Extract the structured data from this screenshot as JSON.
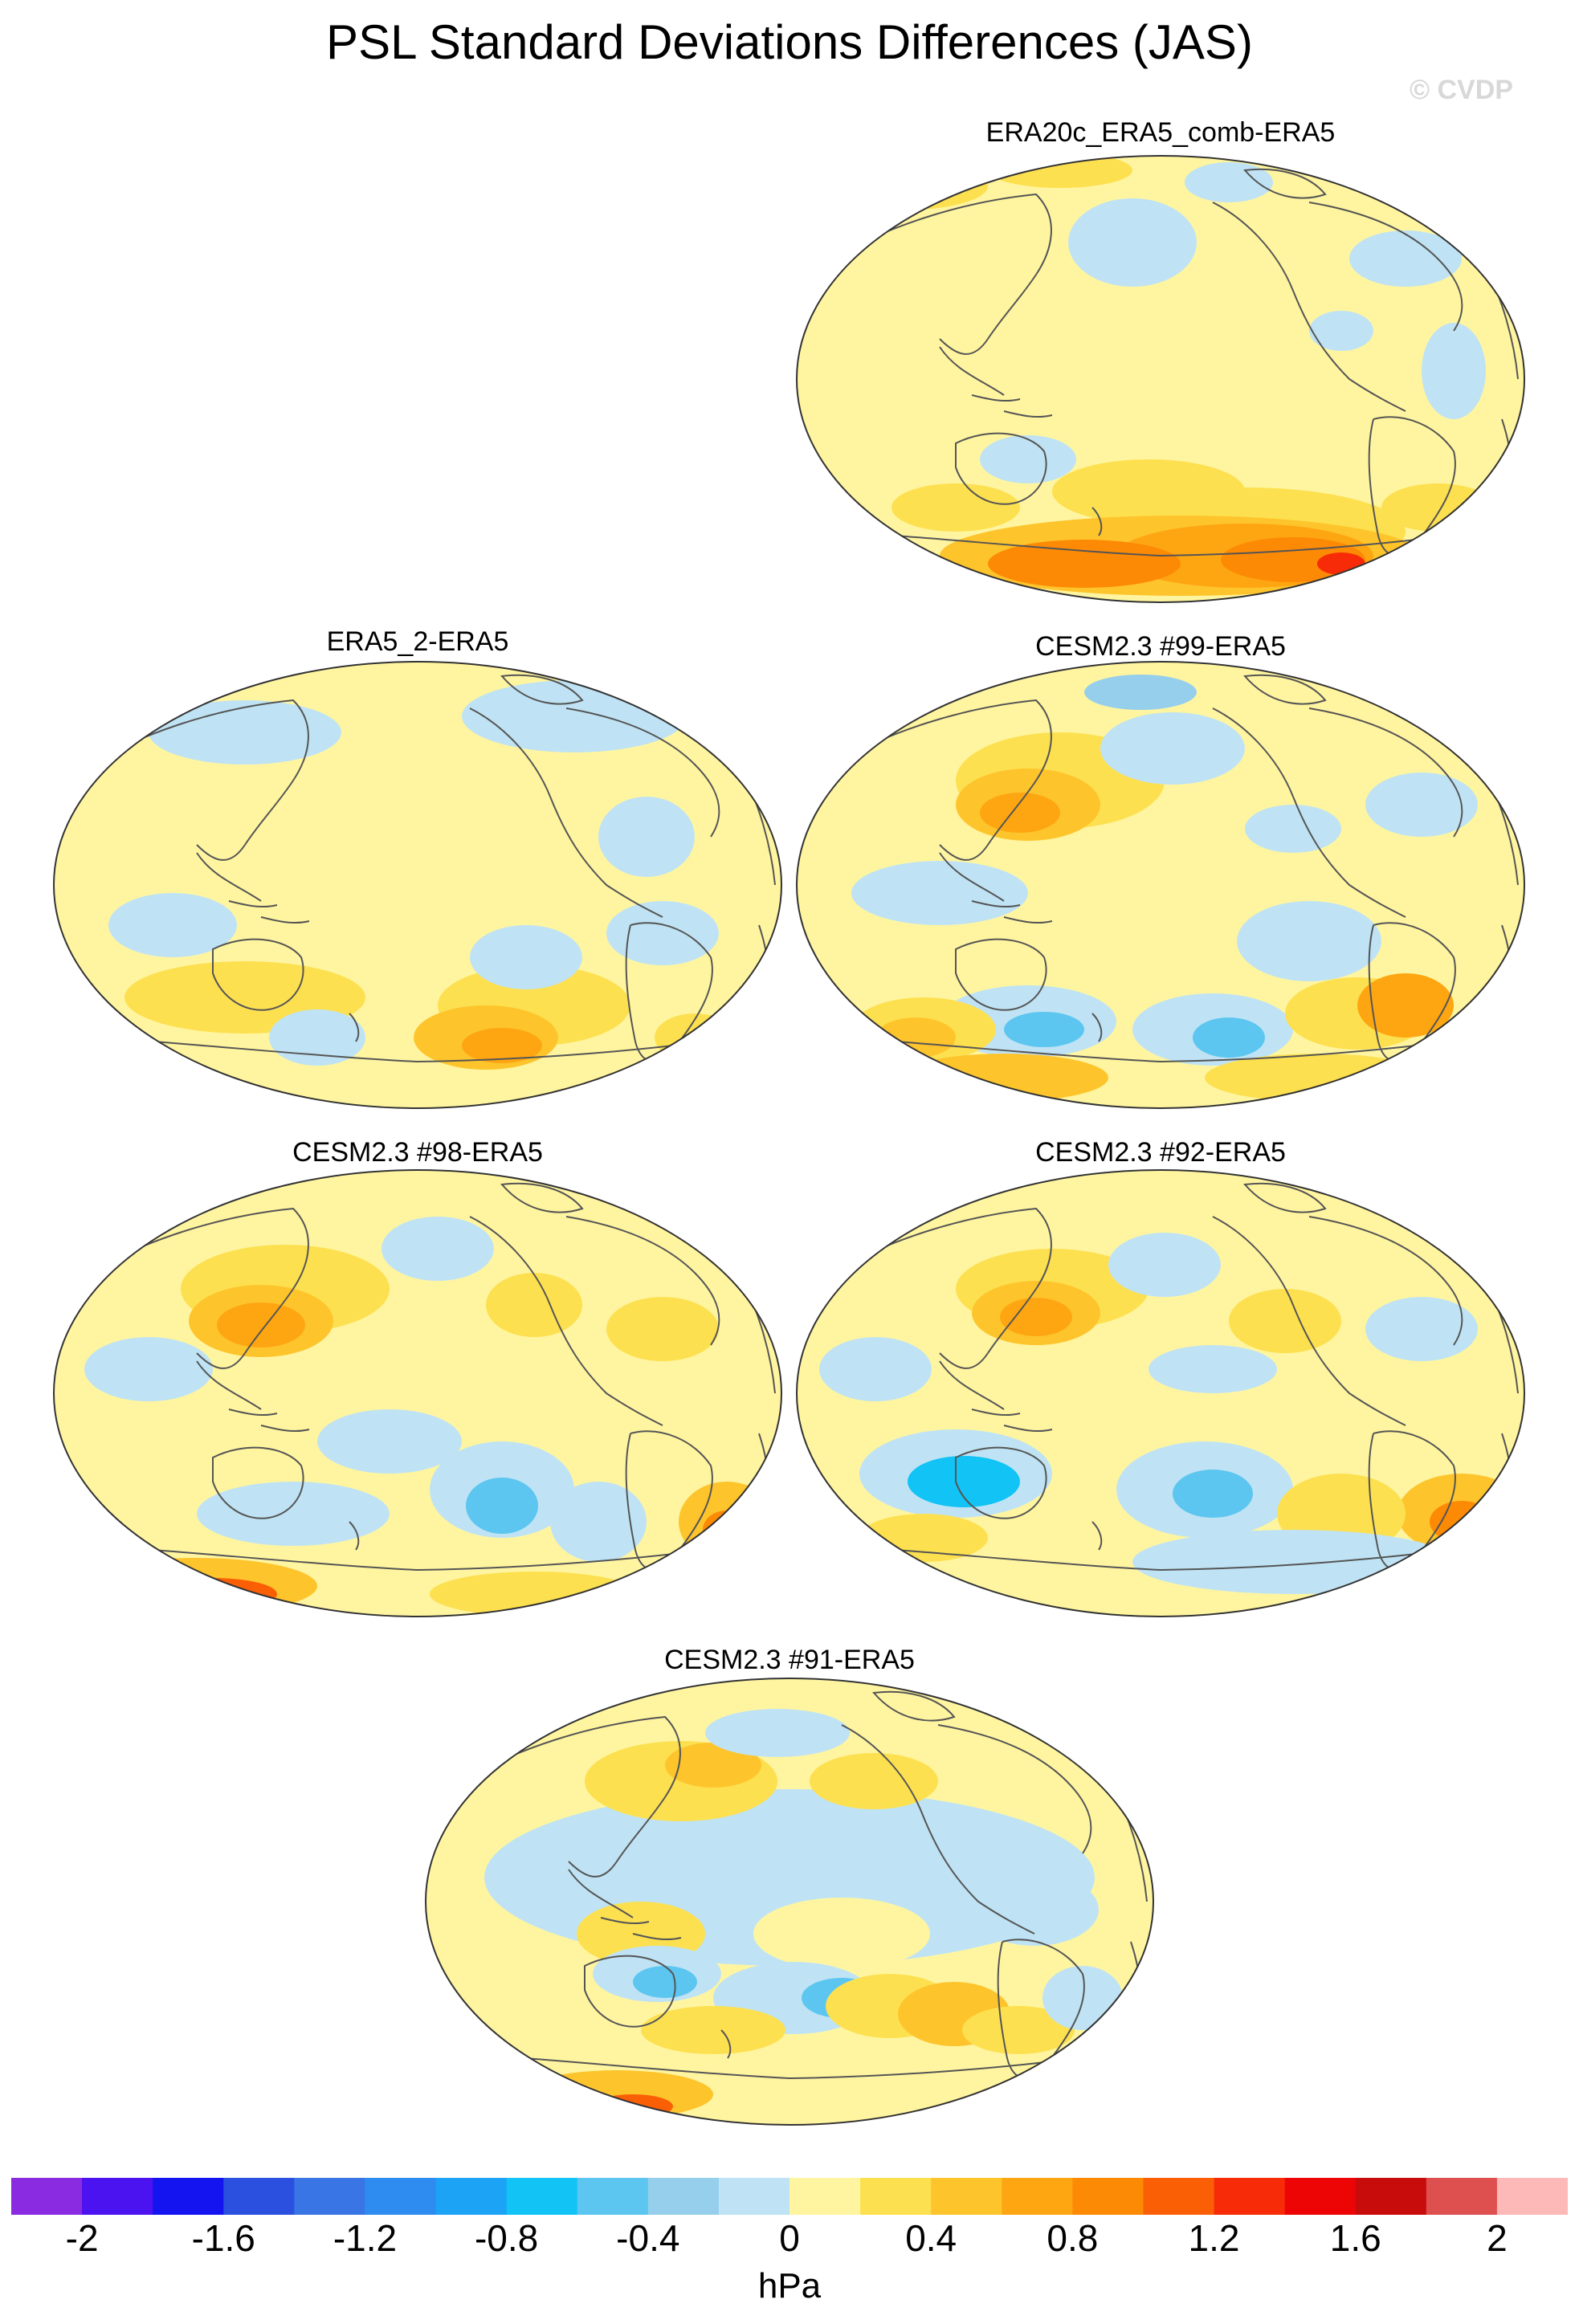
{
  "title": "PSL Standard Deviations Differences (JAS)",
  "watermark": "© CVDP",
  "panels": [
    {
      "id": "p1",
      "label": "ERA20c_ERA5_comb-ERA5"
    },
    {
      "id": "p2",
      "label": "ERA5_2-ERA5"
    },
    {
      "id": "p3",
      "label": "CESM2.3 #99-ERA5"
    },
    {
      "id": "p4",
      "label": "CESM2.3 #98-ERA5"
    },
    {
      "id": "p5",
      "label": "CESM2.3 #92-ERA5"
    },
    {
      "id": "p6",
      "label": "CESM2.3 #91-ERA5"
    }
  ],
  "colorbar": {
    "units": "hPa",
    "tick_labels": [
      "-2",
      "-1.6",
      "-1.2",
      "-0.8",
      "-0.4",
      "0",
      "0.4",
      "0.8",
      "1.2",
      "1.6",
      "2"
    ],
    "colors": [
      "#8a2be2",
      "#4b13ef",
      "#1414f0",
      "#2b4fde",
      "#3a75e6",
      "#2e8bef",
      "#1ca3f5",
      "#12c3f5",
      "#5cc6f0",
      "#96cfec",
      "#bfe3f4",
      "#fff5a0",
      "#fde050",
      "#fec42c",
      "#fea612",
      "#fd8a05",
      "#fb5f06",
      "#f82b08",
      "#ed0505",
      "#c80b0b",
      "#de4f4f",
      "#fdb8b8"
    ],
    "range": [
      -2.2,
      2.2
    ]
  },
  "colors": {
    "ocean_pos": "#fff5a0",
    "ocean_neg": "#bfe3f4",
    "coast": "#555555"
  }
}
